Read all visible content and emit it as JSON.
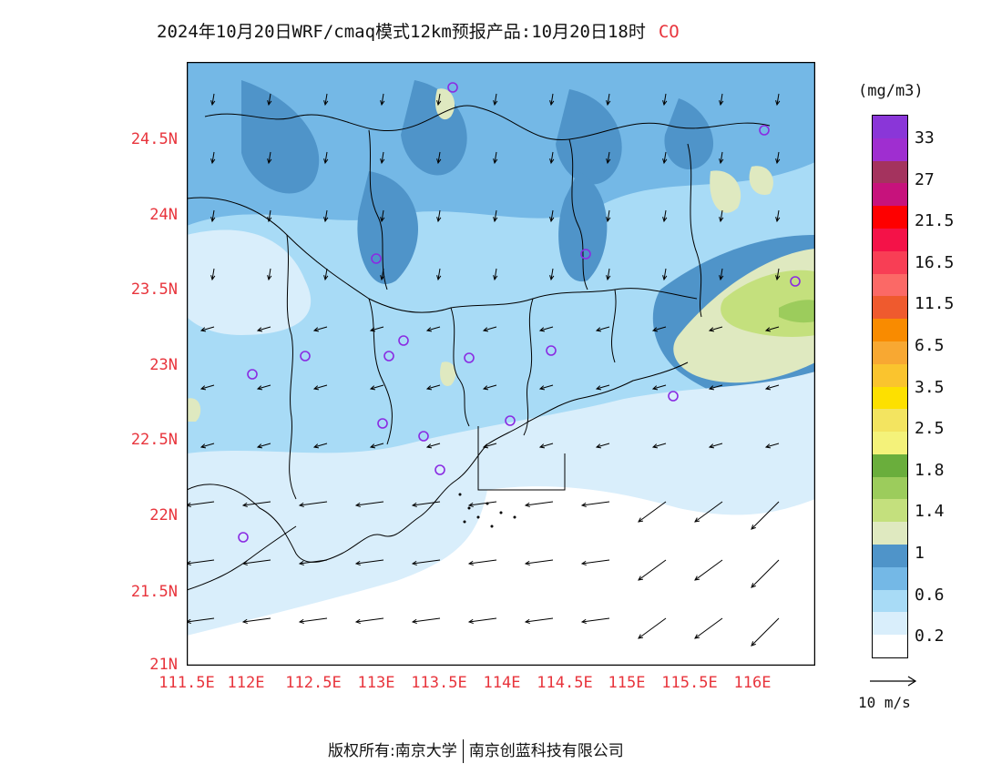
{
  "title": {
    "main": "2024年10月20日WRF/cmaq模式12km预报产品:10月20日18时",
    "species": "CO"
  },
  "axes": {
    "y_ticks": [
      "24.5N",
      "24N",
      "23.5N",
      "23N",
      "22.5N",
      "22N",
      "21.5N",
      "21N"
    ],
    "x_ticks": [
      "111.5E",
      "112E",
      "112.5E",
      "113E",
      "113.5E",
      "114E",
      "114.5E",
      "115E",
      "115.5E",
      "116E"
    ]
  },
  "colorbar": {
    "unit": "(mg/m3)",
    "labels": [
      "33",
      "27",
      "21.5",
      "16.5",
      "11.5",
      "6.5",
      "3.5",
      "2.5",
      "1.8",
      "1.4",
      "1",
      "0.6",
      "0.2"
    ],
    "colors": [
      "#ffffff",
      "#d9eefb",
      "#a8dbf6",
      "#74b8e6",
      "#4f94c9",
      "#dfe9c0",
      "#c4e07d",
      "#9ccc5c",
      "#6aae3c",
      "#f4f27a",
      "#f3e460",
      "#fde000",
      "#fac42e",
      "#f8a832",
      "#f98b00",
      "#ef5a2e",
      "#fb6966",
      "#f83e55",
      "#f41248",
      "#fe0000",
      "#c7127c",
      "#a4335e",
      "#9f2ed0",
      "#8a36d8"
    ]
  },
  "wind_reference": {
    "label": "10 m/s"
  },
  "credit": {
    "left": "版权所有:南京大学",
    "right": "南京创蓝科技有限公司"
  },
  "stations": {
    "count_label": "",
    "marker": "circle"
  }
}
